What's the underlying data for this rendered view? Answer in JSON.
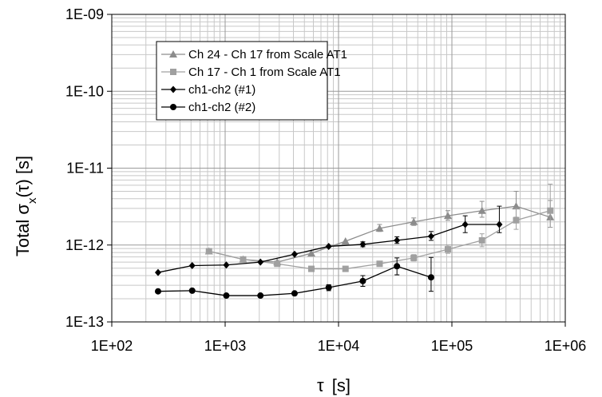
{
  "chart_data": {
    "type": "scatter",
    "x_scale": "log",
    "y_scale": "log",
    "xlim": [
      100,
      1000000
    ],
    "ylim": [
      1e-13,
      1e-09
    ],
    "grid": true,
    "legend_position": "top-left",
    "xlabel": {
      "prefix": "τ",
      "unit": "[s]"
    },
    "ylabel": {
      "prefix": "Total σ",
      "sub": "x",
      "suffix": "(τ) [s]"
    },
    "x_tick_labels": [
      "1E+02",
      "1E+03",
      "1E+04",
      "1E+05",
      "1E+06"
    ],
    "x_tick_values": [
      100,
      1000,
      10000,
      100000,
      1000000
    ],
    "y_tick_labels": [
      "1E-13",
      "1E-12",
      "1E-11",
      "1E-10",
      "1E-09"
    ],
    "y_tick_values": [
      1e-13,
      1e-12,
      1e-11,
      1e-10,
      1e-09
    ],
    "series": [
      {
        "name": "Ch 24 - Ch 17 from Scale AT1",
        "color": "#8c8c8c",
        "marker": "triangle",
        "x": [
          720,
          1440,
          2880,
          5760,
          11520,
          23040,
          46080,
          92160,
          184320,
          368640,
          737280
        ],
        "y": [
          8.3e-13,
          6.5e-13,
          6e-13,
          7.8e-13,
          1.12e-12,
          1.65e-12,
          2e-12,
          2.4e-12,
          2.8e-12,
          3.2e-12,
          2.3e-12
        ],
        "err_low": [
          null,
          null,
          null,
          null,
          null,
          1.5e-12,
          1.8e-12,
          2.1e-12,
          2.3e-12,
          2.3e-12,
          1.7e-12
        ],
        "err_high": [
          null,
          null,
          null,
          null,
          null,
          1.85e-12,
          2.25e-12,
          2.8e-12,
          3.7e-12,
          5e-12,
          3.8e-12
        ]
      },
      {
        "name": "Ch 17 - Ch 1 from Scale AT1",
        "color": "#a0a0a0",
        "marker": "square",
        "x": [
          720,
          1440,
          2880,
          5760,
          11520,
          23040,
          46080,
          92160,
          184320,
          368640,
          737280
        ],
        "y": [
          8.3e-13,
          6.5e-13,
          5.7e-13,
          4.9e-13,
          4.9e-13,
          5.7e-13,
          6.8e-13,
          8.8e-13,
          1.15e-12,
          2.1e-12,
          2.8e-12
        ],
        "err_low": [
          null,
          null,
          null,
          null,
          null,
          null,
          6.2e-13,
          7.8e-13,
          9.5e-13,
          1.6e-12,
          1.7e-12
        ],
        "err_high": [
          null,
          null,
          null,
          null,
          null,
          null,
          7.5e-13,
          1e-12,
          1.4e-12,
          3e-12,
          6.2e-12
        ]
      },
      {
        "name": "ch1-ch2  (#1)",
        "color": "#000000",
        "marker": "diamond",
        "x": [
          256,
          512,
          1024,
          2048,
          4096,
          8192,
          16384,
          32768,
          65536,
          131072,
          262144
        ],
        "y": [
          4.4e-13,
          5.4e-13,
          5.5e-13,
          6e-13,
          7.6e-13,
          9.6e-13,
          1.02e-12,
          1.15e-12,
          1.3e-12,
          1.85e-12,
          1.85e-12
        ],
        "err_low": [
          null,
          null,
          null,
          null,
          null,
          null,
          9.5e-13,
          1.05e-12,
          1.15e-12,
          1.45e-12,
          1.45e-12
        ],
        "err_high": [
          null,
          null,
          null,
          null,
          null,
          null,
          1.1e-12,
          1.28e-12,
          1.5e-12,
          2.4e-12,
          3.2e-12
        ]
      },
      {
        "name": "ch1-ch2  (#2)",
        "color": "#000000",
        "marker": "circle",
        "x": [
          256,
          512,
          1024,
          2048,
          4096,
          8192,
          16384,
          32768,
          65536
        ],
        "y": [
          2.5e-13,
          2.55e-13,
          2.2e-13,
          2.2e-13,
          2.35e-13,
          2.8e-13,
          3.4e-13,
          5.3e-13,
          3.8e-13
        ],
        "err_low": [
          null,
          null,
          null,
          null,
          null,
          2.55e-13,
          2.9e-13,
          4.1e-13,
          2.5e-13
        ],
        "err_high": [
          null,
          null,
          null,
          null,
          null,
          3.05e-13,
          4e-13,
          6.8e-13,
          6.9e-13
        ]
      }
    ]
  }
}
